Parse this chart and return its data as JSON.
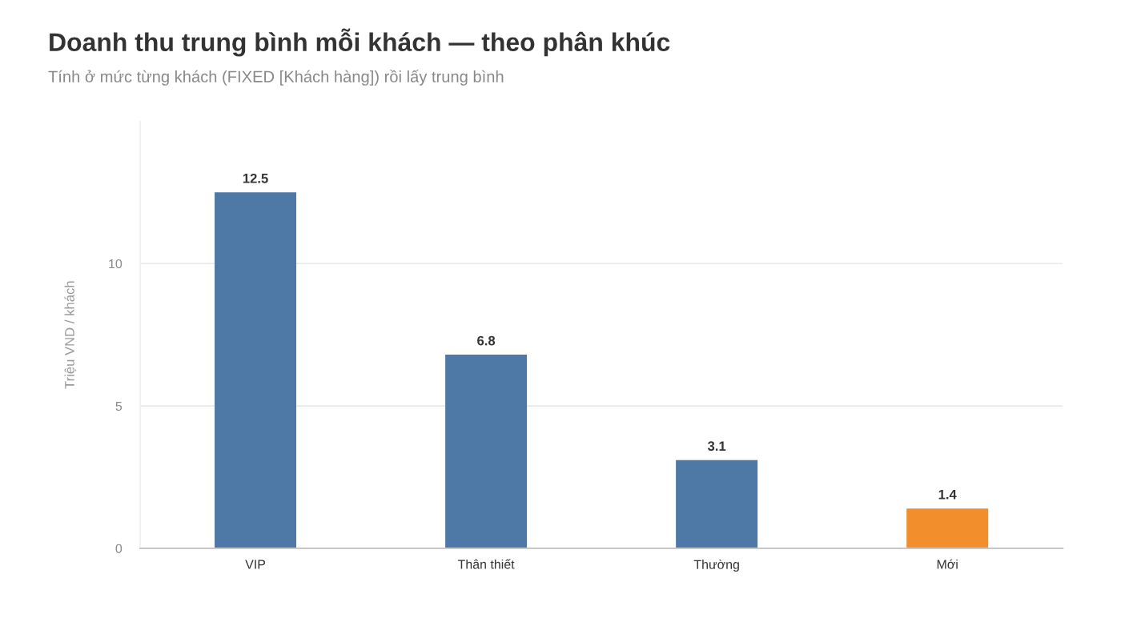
{
  "chart_data": {
    "type": "bar",
    "title": "Doanh thu trung bình mỗi khách — theo phân khúc",
    "subtitle": "Tính ở mức từng khách (FIXED [Khách hàng]) rồi lấy trung bình",
    "ylabel": "Triệu VND / khách",
    "categories": [
      "VIP",
      "Thân thiết",
      "Thường",
      "Mới"
    ],
    "values": [
      12.5,
      6.8,
      3.1,
      1.4
    ],
    "colors": [
      "#4e79a7",
      "#4e79a7",
      "#4e79a7",
      "#f28e2b"
    ],
    "ylim": [
      0,
      15
    ],
    "yticks": [
      0,
      5,
      10
    ],
    "grid": "y",
    "data_labels": true
  }
}
